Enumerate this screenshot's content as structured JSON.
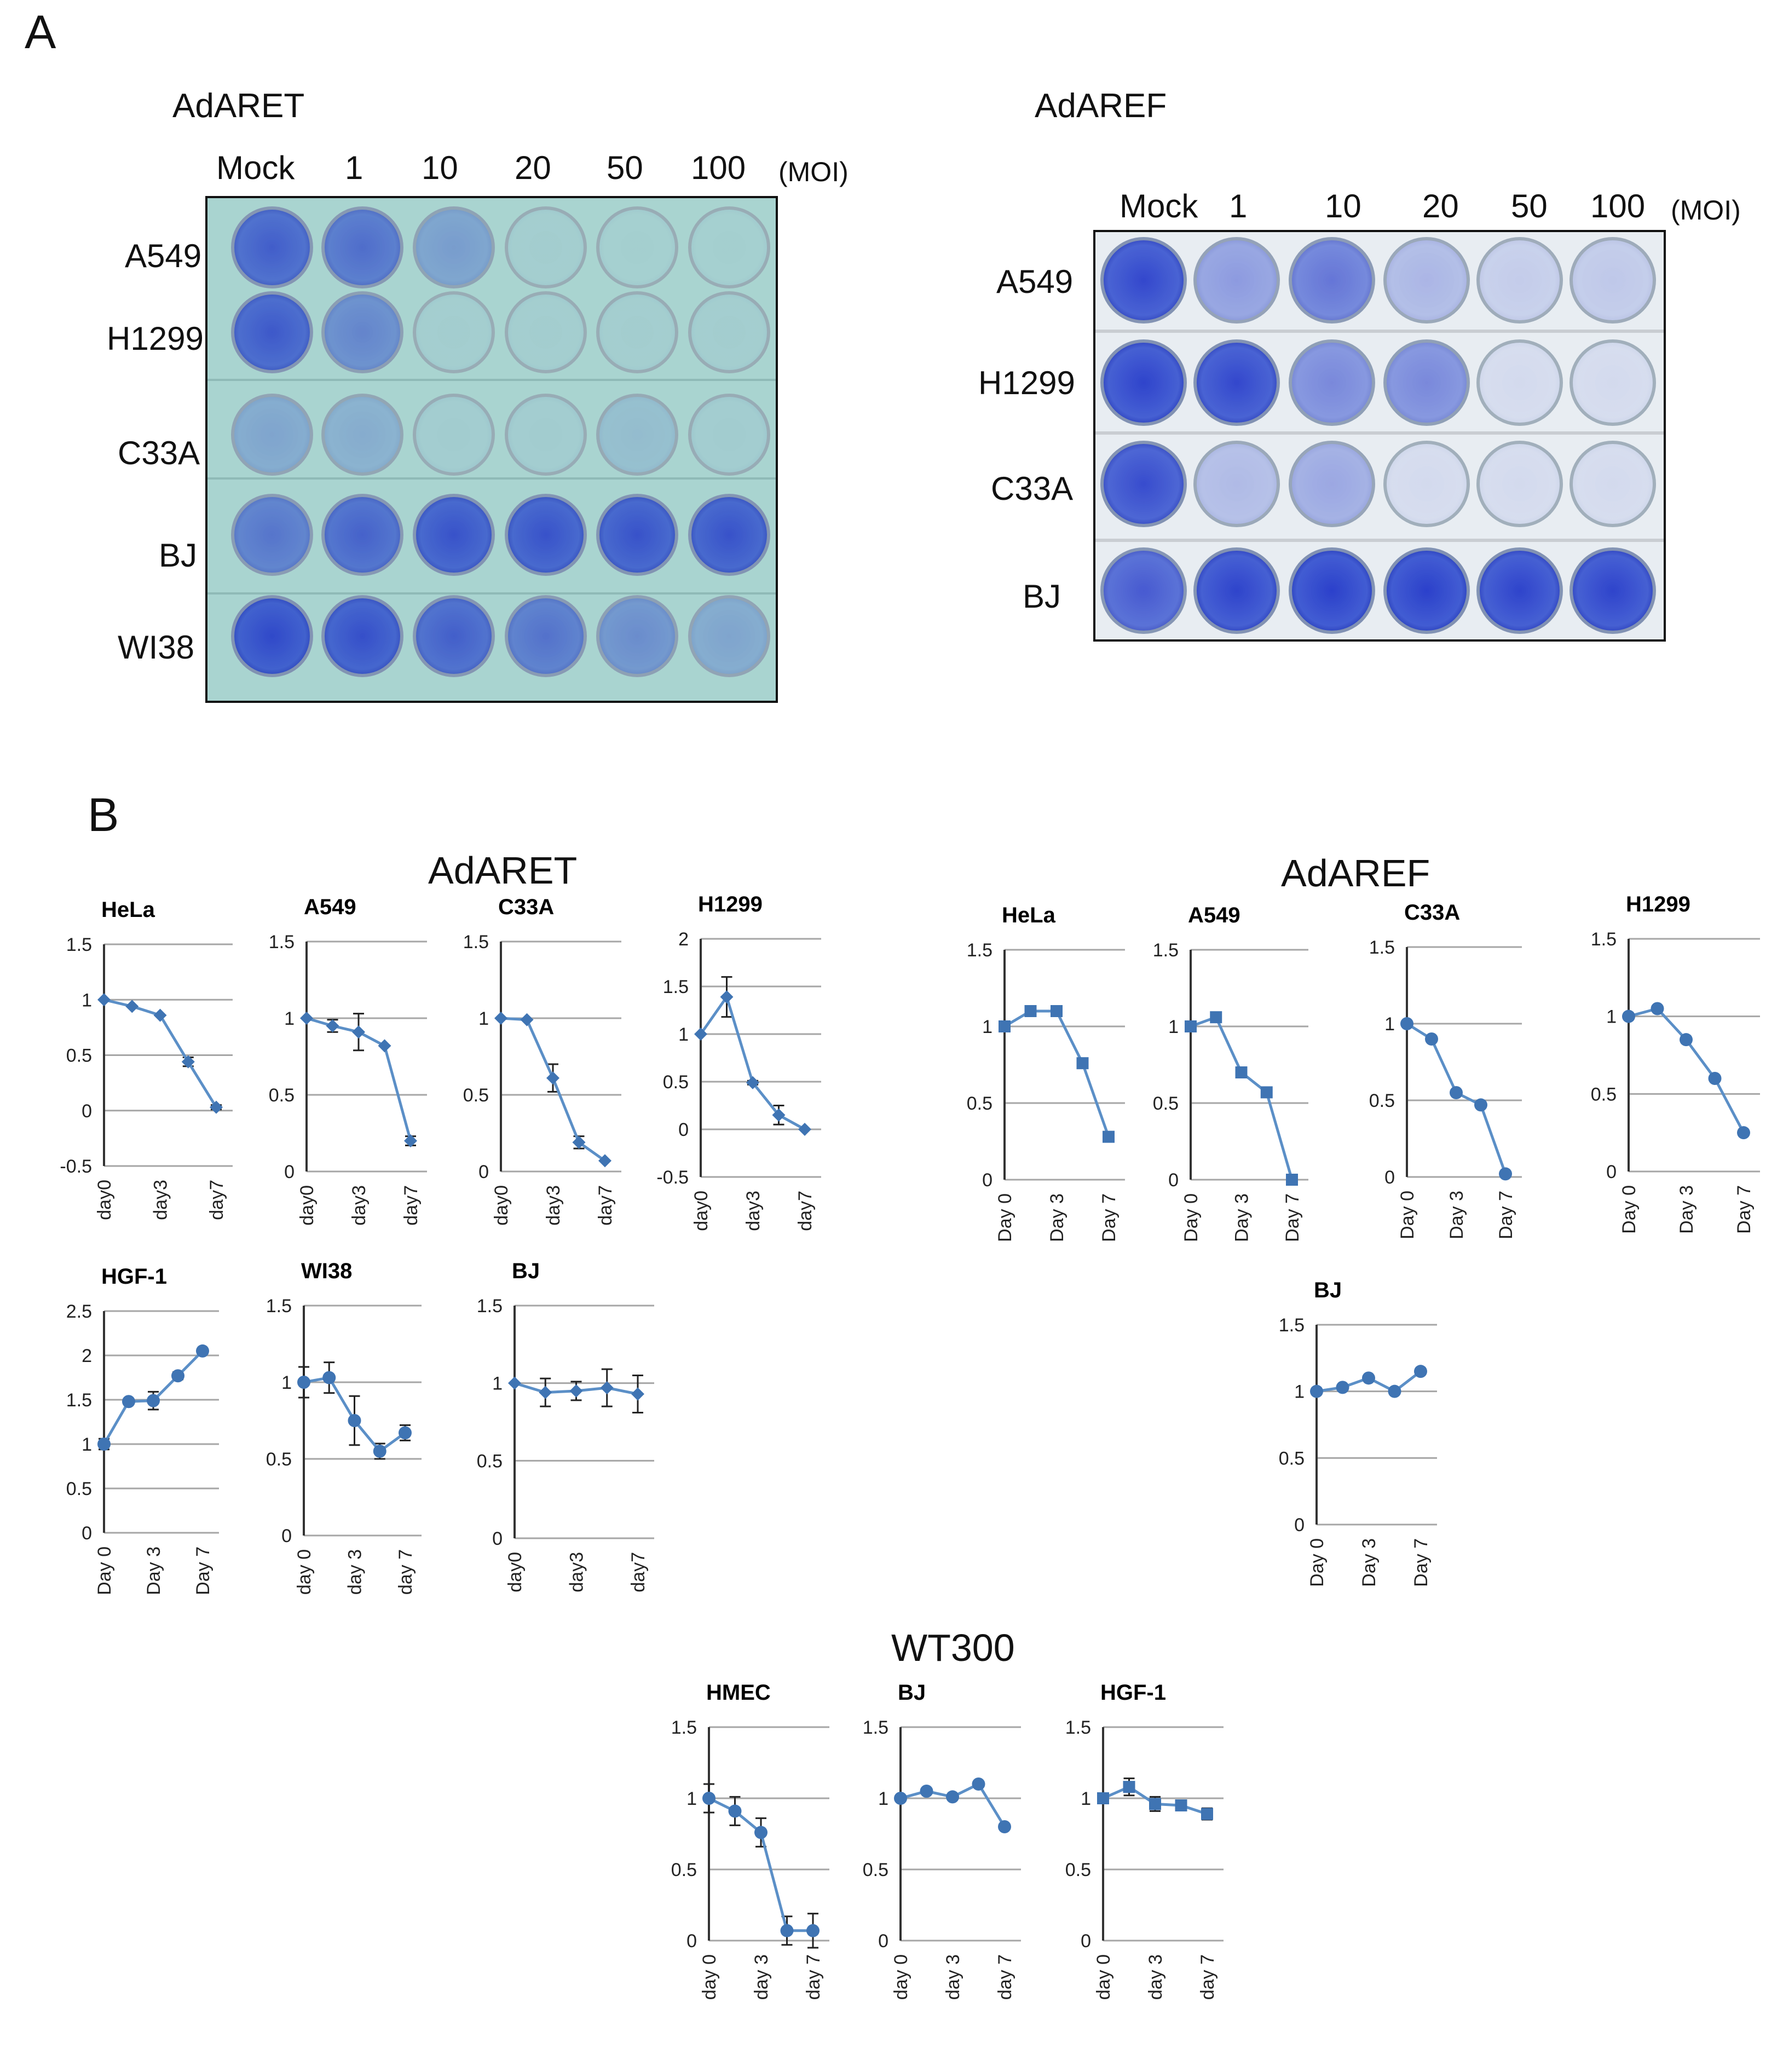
{
  "panel_a": {
    "letter": "A",
    "plates": [
      {
        "title": "AdARET",
        "columns": [
          "Mock",
          "1",
          "10",
          "20",
          "50",
          "100"
        ],
        "unit": "(MOI)",
        "rows": [
          "A549",
          "H1299",
          "C33A",
          "BJ",
          "WI38"
        ],
        "well_stain": [
          [
            0.75,
            0.65,
            0.35,
            0.04,
            0.03,
            0.03
          ],
          [
            0.78,
            0.5,
            0.04,
            0.04,
            0.04,
            0.04
          ],
          [
            0.3,
            0.25,
            0.05,
            0.05,
            0.15,
            0.05
          ],
          [
            0.6,
            0.72,
            0.82,
            0.82,
            0.82,
            0.82
          ],
          [
            0.88,
            0.84,
            0.74,
            0.62,
            0.45,
            0.3
          ]
        ]
      },
      {
        "title": "AdAREF",
        "columns": [
          "Mock",
          "1",
          "10",
          "20",
          "50",
          "100"
        ],
        "unit": "(MOI)",
        "rows": [
          "A549",
          "H1299",
          "C33A",
          "BJ"
        ],
        "well_stain": [
          [
            0.9,
            0.45,
            0.65,
            0.3,
            0.18,
            0.2
          ],
          [
            0.92,
            0.9,
            0.55,
            0.55,
            0.1,
            0.1
          ],
          [
            0.88,
            0.28,
            0.38,
            0.1,
            0.1,
            0.1
          ],
          [
            0.8,
            0.92,
            0.94,
            0.94,
            0.92,
            0.92
          ]
        ]
      }
    ]
  },
  "panel_b": {
    "letter": "B",
    "groups": [
      "AdARET",
      "AdAREF",
      "WT300"
    ]
  },
  "chart_data": [
    {
      "type": "line",
      "group": "AdARET",
      "title": "HeLa",
      "y": [
        1,
        0.94,
        0.86,
        0.44,
        0.03
      ],
      "err": [
        0,
        0,
        0,
        0.04,
        0.02
      ],
      "ylim": [
        -0.5,
        1.5
      ],
      "yticks": [
        "1.5",
        "1",
        "0.5",
        "0",
        "-0.5"
      ],
      "xticks": [
        "day0",
        "day3",
        "day7"
      ],
      "marker": "diamond"
    },
    {
      "type": "line",
      "group": "AdARET",
      "title": "A549",
      "y": [
        1,
        0.95,
        0.91,
        0.82,
        0.2
      ],
      "err": [
        0,
        0.04,
        0.12,
        0,
        0.03
      ],
      "ylim": [
        0,
        1.5
      ],
      "yticks": [
        "1.5",
        "1",
        "0.5",
        "0"
      ],
      "xticks": [
        "day0",
        "day3",
        "day7"
      ],
      "marker": "diamond"
    },
    {
      "type": "line",
      "group": "AdARET",
      "title": "C33A",
      "y": [
        1,
        0.99,
        0.61,
        0.19,
        0.07
      ],
      "err": [
        0,
        0,
        0.09,
        0.04,
        0
      ],
      "ylim": [
        0,
        1.5
      ],
      "yticks": [
        "1.5",
        "1",
        "0.5",
        "0"
      ],
      "xticks": [
        "day0",
        "day3",
        "day7"
      ],
      "marker": "diamond"
    },
    {
      "type": "line",
      "group": "AdARET",
      "title": "H1299",
      "y": [
        1,
        1.39,
        0.49,
        0.15,
        0
      ],
      "err": [
        0,
        0.21,
        0.02,
        0.1,
        0
      ],
      "ylim": [
        -0.5,
        2
      ],
      "yticks": [
        "2",
        "1.5",
        "1",
        "0.5",
        "0",
        "-0.5"
      ],
      "xticks": [
        "day0",
        "day3",
        "day7"
      ],
      "marker": "diamond"
    },
    {
      "type": "line",
      "group": "AdARET",
      "title": "HGF-1",
      "y": [
        1,
        1.48,
        1.49,
        1.77,
        2.05
      ],
      "err": [
        0.06,
        0,
        0.1,
        0.04,
        0
      ],
      "ylim": [
        0,
        2.5
      ],
      "yticks": [
        "2.5",
        "2",
        "1.5",
        "1",
        "0.5",
        "0"
      ],
      "xticks": [
        "Day 0",
        "Day 3",
        "Day 7"
      ],
      "marker": "circle"
    },
    {
      "type": "line",
      "group": "AdARET",
      "title": "WI38",
      "y": [
        1,
        1.03,
        0.75,
        0.55,
        0.67
      ],
      "err": [
        0.1,
        0.1,
        0.16,
        0.05,
        0.05
      ],
      "ylim": [
        0,
        1.5
      ],
      "yticks": [
        "1.5",
        "1",
        "0.5",
        "0"
      ],
      "xticks": [
        "day 0",
        "day 3",
        "day 7"
      ],
      "marker": "circle"
    },
    {
      "type": "line",
      "group": "AdARET",
      "title": "BJ",
      "y": [
        1,
        0.94,
        0.95,
        0.97,
        0.93
      ],
      "err": [
        0,
        0.09,
        0.06,
        0.12,
        0.12
      ],
      "ylim": [
        0,
        1.5
      ],
      "yticks": [
        "1.5",
        "1",
        "0.5",
        "0"
      ],
      "xticks": [
        "day0",
        "day3",
        "day7"
      ],
      "marker": "diamond"
    },
    {
      "type": "line",
      "group": "AdAREF",
      "title": "HeLa",
      "y": [
        1,
        1.1,
        1.1,
        0.76,
        0.28
      ],
      "err": [
        0,
        0,
        0,
        0,
        0
      ],
      "ylim": [
        0,
        1.5
      ],
      "yticks": [
        "1.5",
        "1",
        "0.5",
        "0"
      ],
      "xticks": [
        "Day 0",
        "Day 3",
        "Day 7"
      ],
      "marker": "square"
    },
    {
      "type": "line",
      "group": "AdAREF",
      "title": "A549",
      "y": [
        1,
        1.06,
        0.7,
        0.57,
        0
      ],
      "err": [
        0,
        0,
        0,
        0,
        0
      ],
      "ylim": [
        0,
        1.5
      ],
      "yticks": [
        "1.5",
        "1",
        "0.5",
        "0"
      ],
      "xticks": [
        "Day 0",
        "Day 3",
        "Day 7"
      ],
      "marker": "square"
    },
    {
      "type": "line",
      "group": "AdAREF",
      "title": "C33A",
      "y": [
        1,
        0.9,
        0.55,
        0.47,
        0.02
      ],
      "err": [
        0,
        0,
        0,
        0,
        0
      ],
      "ylim": [
        0,
        1.5
      ],
      "yticks": [
        "1.5",
        "1",
        "0.5",
        "0"
      ],
      "xticks": [
        "Day 0",
        "Day 3",
        "Day 7"
      ],
      "marker": "circle"
    },
    {
      "type": "line",
      "group": "AdAREF",
      "title": "H1299",
      "y": [
        1,
        1.05,
        0.85,
        0.6,
        0.25
      ],
      "err": [
        0,
        0,
        0,
        0,
        0
      ],
      "ylim": [
        0,
        1.5
      ],
      "yticks": [
        "1.5",
        "1",
        "0.5",
        "0"
      ],
      "xticks": [
        "Day 0",
        "Day 3",
        "Day 7"
      ],
      "marker": "circle"
    },
    {
      "type": "line",
      "group": "AdAREF",
      "title": "BJ",
      "y": [
        1,
        1.03,
        1.1,
        1,
        1.15
      ],
      "err": [
        0,
        0,
        0,
        0,
        0
      ],
      "ylim": [
        0,
        1.5
      ],
      "yticks": [
        "1.5",
        "1",
        "0.5",
        "0"
      ],
      "xticks": [
        "Day 0",
        "Day 3",
        "Day 7"
      ],
      "marker": "circle"
    },
    {
      "type": "line",
      "group": "WT300",
      "title": "HMEC",
      "y": [
        1,
        0.91,
        0.76,
        0.07,
        0.07
      ],
      "err": [
        0.1,
        0.1,
        0.1,
        0.1,
        0.12
      ],
      "ylim": [
        0,
        1.5
      ],
      "yticks": [
        "1.5",
        "1",
        "0.5",
        "0"
      ],
      "xticks": [
        "day 0",
        "day 3",
        "day 7"
      ],
      "marker": "circle"
    },
    {
      "type": "line",
      "group": "WT300",
      "title": "BJ",
      "y": [
        1,
        1.05,
        1.01,
        1.1,
        0.8
      ],
      "err": [
        0,
        0,
        0,
        0,
        0
      ],
      "ylim": [
        0,
        1.5
      ],
      "yticks": [
        "1.5",
        "1",
        "0.5",
        "0"
      ],
      "xticks": [
        "day 0",
        "day 3",
        "day 7"
      ],
      "marker": "circle"
    },
    {
      "type": "line",
      "group": "WT300",
      "title": "HGF-1",
      "y": [
        1,
        1.08,
        0.96,
        0.95,
        0.89
      ],
      "err": [
        0,
        0.06,
        0.05,
        0,
        0.04
      ],
      "ylim": [
        0,
        1.5
      ],
      "yticks": [
        "1.5",
        "1",
        "0.5",
        "0"
      ],
      "xticks": [
        "day 0",
        "day 3",
        "day 7"
      ],
      "marker": "square"
    }
  ],
  "colors": {
    "line": "#5b8fc7",
    "marker": "#3f74b3",
    "grid": "#a6a6a6",
    "well_stain": "#1f35c8"
  }
}
